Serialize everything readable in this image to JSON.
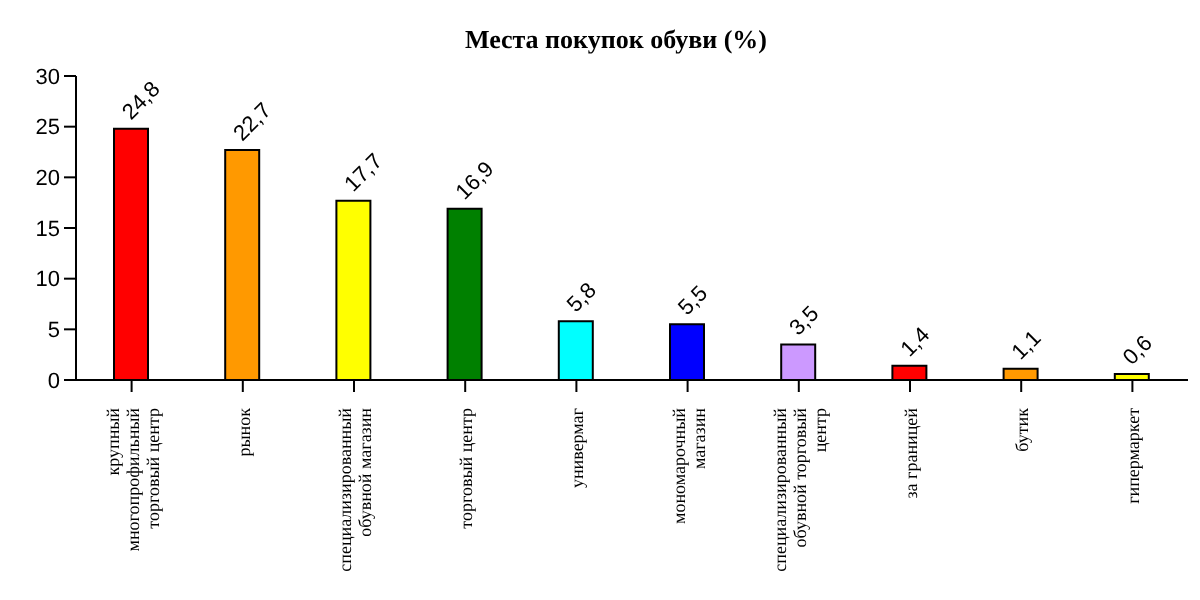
{
  "chart_data": {
    "type": "bar",
    "title": "Места покупок обуви (%)",
    "categories": [
      "крупный многопрофильный торговый центр",
      "рынок",
      "специализированный обувной магазин",
      "торговый центр",
      "универмаг",
      "мономарочный магазин",
      "специализированный обувной торговый центр",
      "за границей",
      "бутик",
      "гипермаркет"
    ],
    "values": [
      24.8,
      22.7,
      17.7,
      16.9,
      5.8,
      5.5,
      3.5,
      1.4,
      1.1,
      0.6
    ],
    "value_labels": [
      "24,8",
      "22,7",
      "17,7",
      "16,9",
      "5,8",
      "5,5",
      "3,5",
      "1,4",
      "1,1",
      "0,6"
    ],
    "colors": [
      "#ff0000",
      "#ff9900",
      "#ffff00",
      "#008000",
      "#00ffff",
      "#0000ff",
      "#cc99ff",
      "#ff0000",
      "#ff9900",
      "#ffff00"
    ],
    "ylim": [
      0,
      30
    ],
    "yticks": [
      0,
      5,
      10,
      15,
      20,
      25,
      30
    ],
    "grid": false,
    "legend": false
  }
}
